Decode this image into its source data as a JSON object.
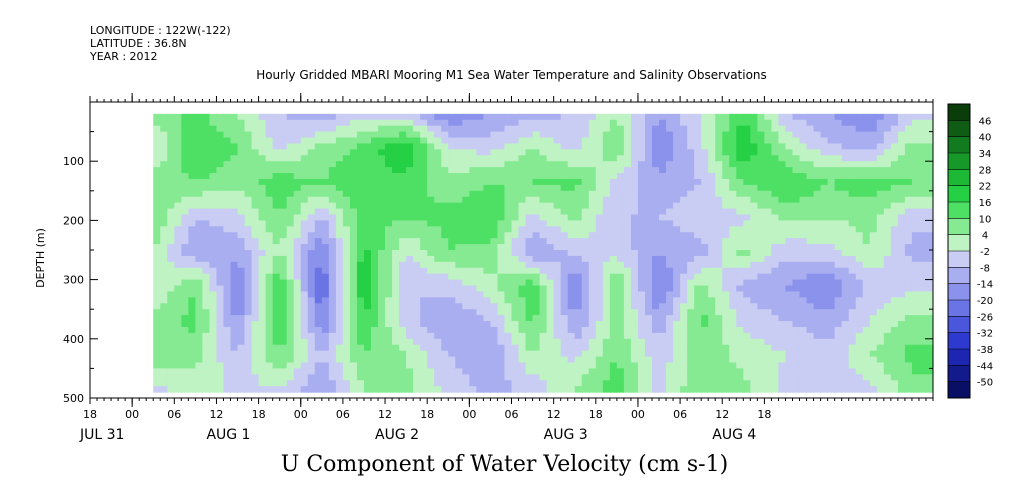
{
  "header": {
    "longitude": "LONGITUDE : 122W(-122)",
    "latitude": "LATITUDE : 36.8N",
    "year": "YEAR : 2012"
  },
  "chart_data": {
    "type": "heatmap",
    "title": "Hourly Gridded MBARI Mooring M1 Sea Water Temperature and Salinity Observations",
    "xlabel": "U Component of Water Velocity (cm s-1)",
    "ylabel": "DEPTH (m)",
    "y_range": [
      0,
      500
    ],
    "y_reversed": true,
    "y_ticks": [
      100,
      200,
      300,
      400,
      500
    ],
    "x_range_hours": [
      -6,
      114
    ],
    "x_tick_hour_labels": [
      {
        "h": -6,
        "label": "18"
      },
      {
        "h": 0,
        "label": "00"
      },
      {
        "h": 6,
        "label": "06"
      },
      {
        "h": 12,
        "label": "12"
      },
      {
        "h": 18,
        "label": "18"
      },
      {
        "h": 24,
        "label": "00"
      },
      {
        "h": 30,
        "label": "06"
      },
      {
        "h": 36,
        "label": "12"
      },
      {
        "h": 42,
        "label": "18"
      },
      {
        "h": 48,
        "label": "00"
      },
      {
        "h": 54,
        "label": "06"
      },
      {
        "h": 60,
        "label": "12"
      },
      {
        "h": 66,
        "label": "18"
      },
      {
        "h": 72,
        "label": "00"
      },
      {
        "h": 78,
        "label": "06"
      },
      {
        "h": 84,
        "label": "12"
      },
      {
        "h": 90,
        "label": "18"
      }
    ],
    "x_day_labels": [
      {
        "h": -6,
        "label": "JUL 31"
      },
      {
        "h": 12,
        "label": "AUG  1"
      },
      {
        "h": 36,
        "label": "AUG  2"
      },
      {
        "h": 60,
        "label": "AUG  3"
      },
      {
        "h": 84,
        "label": "AUG  4"
      }
    ],
    "data_extent_hours": [
      3,
      114
    ],
    "data_extent_depth": [
      20,
      485
    ],
    "colorbar": {
      "levels": [
        "46",
        "40",
        "34",
        "28",
        "22",
        "16",
        "10",
        "4",
        "-2",
        "-8",
        "-14",
        "-20",
        "-26",
        "-32",
        "-38",
        "-44",
        "-50"
      ],
      "colors": [
        "#0b3d0b",
        "#0f5c15",
        "#127a1f",
        "#17992a",
        "#1cb836",
        "#25d045",
        "#4ee065",
        "#86ea93",
        "#bff3c4",
        "#c9ccf3",
        "#a9aef0",
        "#8b92ec",
        "#6a74e4",
        "#4a56dc",
        "#2e3acf",
        "#1c26b0",
        "#121a8c",
        "#0a0f66"
      ]
    },
    "columns": [
      {
        "h": 3,
        "profile": [
          6,
          -4,
          8,
          10,
          4,
          -2,
          6,
          10,
          -4
        ]
      },
      {
        "h": 9,
        "profile": [
          12,
          16,
          10,
          -8,
          -14,
          10,
          12,
          6,
          2
        ]
      },
      {
        "h": 15,
        "profile": [
          4,
          10,
          6,
          -4,
          -12,
          -20,
          -16,
          -8,
          -4
        ]
      },
      {
        "h": 21,
        "profile": [
          -8,
          -4,
          14,
          10,
          4,
          16,
          18,
          10,
          -2
        ]
      },
      {
        "h": 27,
        "profile": [
          -12,
          6,
          10,
          -8,
          -20,
          -26,
          -20,
          -8,
          -14
        ]
      },
      {
        "h": 33,
        "profile": [
          -4,
          12,
          16,
          14,
          18,
          22,
          16,
          10,
          4
        ]
      },
      {
        "h": 39,
        "profile": [
          -6,
          22,
          14,
          10,
          -2,
          -8,
          -6,
          4,
          6
        ]
      },
      {
        "h": 45,
        "profile": [
          -20,
          -2,
          6,
          12,
          10,
          -6,
          -14,
          -8,
          -4
        ]
      },
      {
        "h": 51,
        "profile": [
          -14,
          -4,
          10,
          16,
          8,
          2,
          -8,
          -14,
          -10
        ]
      },
      {
        "h": 57,
        "profile": [
          -10,
          4,
          10,
          -4,
          -14,
          14,
          12,
          4,
          -6
        ]
      },
      {
        "h": 63,
        "profile": [
          -8,
          -4,
          12,
          6,
          -6,
          -20,
          -14,
          -4,
          4
        ]
      },
      {
        "h": 69,
        "profile": [
          4,
          10,
          -4,
          -8,
          -4,
          10,
          6,
          10,
          14
        ]
      },
      {
        "h": 75,
        "profile": [
          -14,
          -20,
          -12,
          -8,
          -14,
          -22,
          -12,
          -6,
          -4
        ]
      },
      {
        "h": 81,
        "profile": [
          -2,
          -4,
          -8,
          -4,
          -10,
          6,
          12,
          8,
          10
        ]
      },
      {
        "h": 87,
        "profile": [
          16,
          22,
          10,
          -4,
          6,
          -10,
          -4,
          2,
          6
        ]
      },
      {
        "h": 93,
        "profile": [
          -8,
          4,
          16,
          6,
          -6,
          -14,
          -8,
          -2,
          -4
        ]
      },
      {
        "h": 99,
        "profile": [
          -14,
          -6,
          10,
          4,
          -4,
          -20,
          -12,
          -6,
          -4
        ]
      },
      {
        "h": 105,
        "profile": [
          -20,
          -10,
          14,
          6,
          4,
          -6,
          -2,
          4,
          -4
        ]
      },
      {
        "h": 111,
        "profile": [
          -4,
          6,
          10,
          -6,
          -10,
          -4,
          6,
          12,
          8
        ]
      }
    ],
    "grid": false
  }
}
